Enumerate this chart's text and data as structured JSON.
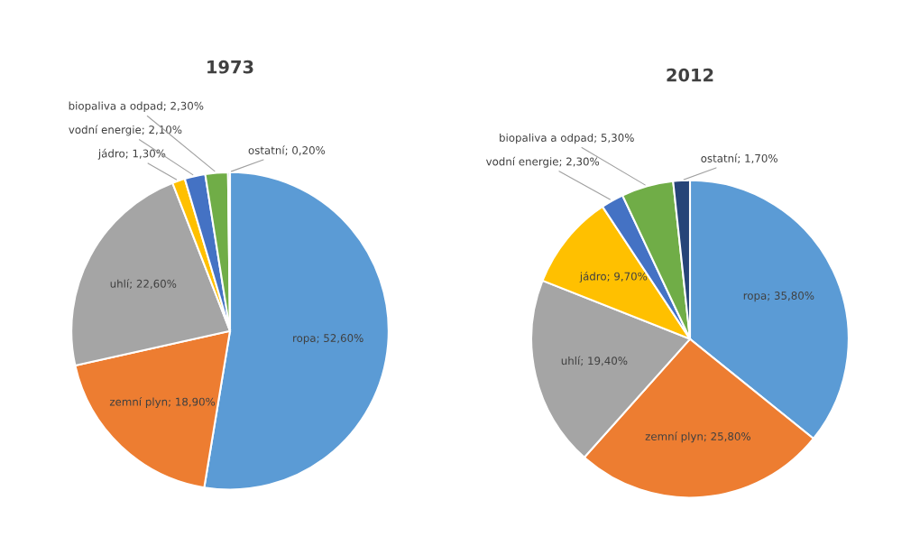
{
  "chart_data": [
    {
      "type": "pie",
      "title": "1973",
      "categories": [
        "ropa",
        "zemní plyn",
        "uhlí",
        "jádro",
        "vodní energie",
        "biopaliva a odpad",
        "ostatní"
      ],
      "values": [
        52.6,
        18.9,
        22.6,
        1.3,
        2.1,
        2.3,
        0.2
      ],
      "colors": [
        "#5b9bd5",
        "#ed7d31",
        "#a5a5a5",
        "#ffc000",
        "#4472c4",
        "#70ad47",
        "#264478"
      ],
      "value_labels": [
        "52,60%",
        "18,90%",
        "22,60%",
        "1,30%",
        "2,10%",
        "2,30%",
        "0,20%"
      ]
    },
    {
      "type": "pie",
      "title": "2012",
      "categories": [
        "ropa",
        "zemní plyn",
        "uhlí",
        "jádro",
        "vodní energie",
        "biopaliva a odpad",
        "ostatní"
      ],
      "values": [
        35.8,
        25.8,
        19.4,
        9.7,
        2.3,
        5.3,
        1.7
      ],
      "colors": [
        "#5b9bd5",
        "#ed7d31",
        "#a5a5a5",
        "#ffc000",
        "#4472c4",
        "#70ad47",
        "#264478"
      ],
      "value_labels": [
        "35,80%",
        "25,80%",
        "19,40%",
        "9,70%",
        "2,30%",
        "5,30%",
        "1,70%"
      ]
    }
  ]
}
